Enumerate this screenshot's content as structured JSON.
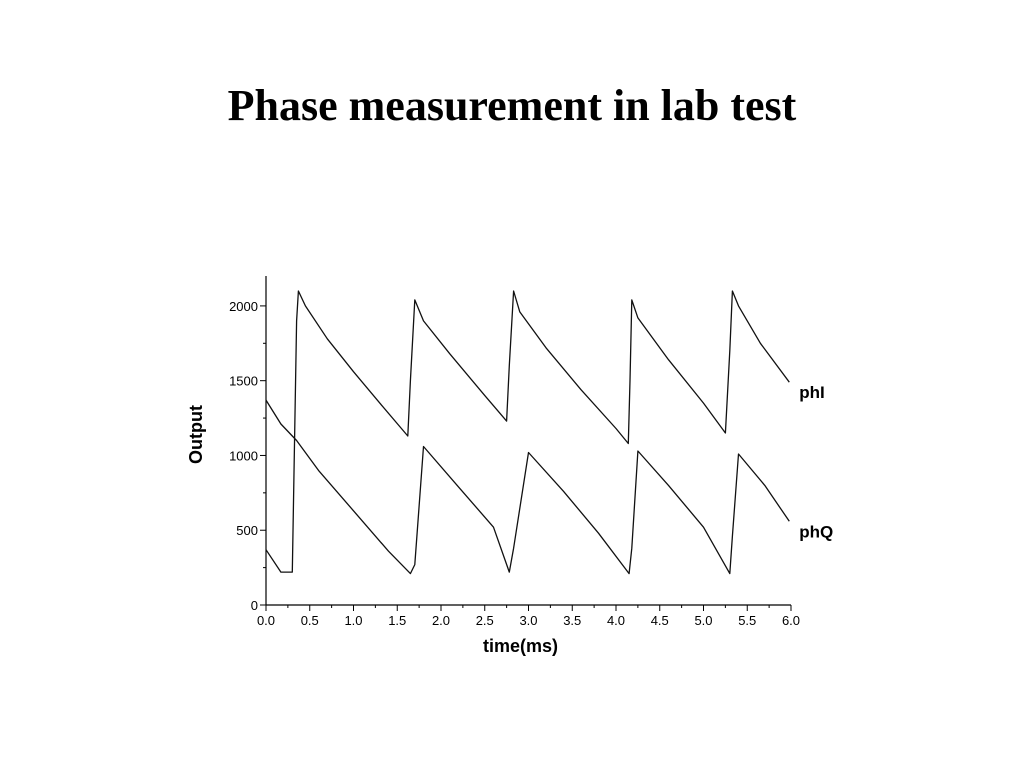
{
  "slide": {
    "title": "Phase measurement in lab test"
  },
  "chart_data": {
    "type": "line",
    "title": "",
    "xlabel": "time(ms)",
    "ylabel": "Output",
    "xlim": [
      0.0,
      6.0
    ],
    "ylim": [
      0,
      2200
    ],
    "x_ticks": [
      "0.0",
      "0.5",
      "1.0",
      "1.5",
      "2.0",
      "2.5",
      "3.0",
      "3.5",
      "4.0",
      "4.5",
      "5.0",
      "5.5",
      "6.0"
    ],
    "y_ticks": [
      "0",
      "500",
      "1000",
      "1500",
      "2000"
    ],
    "grid": false,
    "legend": "inline labels at right end of series",
    "series": [
      {
        "name": "phQ",
        "x": [
          0.0,
          0.17,
          0.3,
          0.35,
          0.6,
          1.0,
          1.4,
          1.65,
          1.7,
          1.8,
          2.2,
          2.6,
          2.78,
          2.83,
          3.0,
          3.4,
          3.8,
          4.15,
          4.18,
          4.25,
          4.6,
          5.0,
          5.3,
          5.33,
          5.4,
          5.7,
          5.98
        ],
        "y": [
          1370,
          1210,
          1130,
          1100,
          900,
          630,
          360,
          210,
          270,
          1060,
          790,
          520,
          220,
          380,
          1020,
          760,
          480,
          210,
          380,
          1030,
          800,
          520,
          210,
          460,
          1010,
          800,
          560
        ]
      },
      {
        "name": "phI",
        "x": [
          0.0,
          0.17,
          0.3,
          0.35,
          0.37,
          0.45,
          0.7,
          1.0,
          1.3,
          1.62,
          1.65,
          1.7,
          1.8,
          2.1,
          2.5,
          2.75,
          2.78,
          2.83,
          2.9,
          3.2,
          3.6,
          4.0,
          4.14,
          4.16,
          4.18,
          4.25,
          4.6,
          5.0,
          5.25,
          5.3,
          5.33,
          5.4,
          5.65,
          5.98
        ],
        "y": [
          370,
          220,
          220,
          1900,
          2100,
          2000,
          1780,
          1560,
          1350,
          1130,
          1500,
          2040,
          1900,
          1680,
          1400,
          1230,
          1600,
          2100,
          1960,
          1720,
          1440,
          1180,
          1080,
          1500,
          2040,
          1920,
          1640,
          1350,
          1150,
          1700,
          2100,
          2000,
          1750,
          1490
        ]
      }
    ]
  }
}
